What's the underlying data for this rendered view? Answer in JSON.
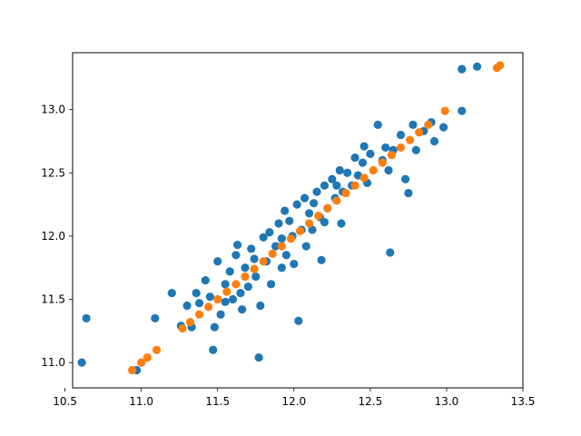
{
  "chart_data": {
    "type": "scatter",
    "title": "",
    "xlabel": "",
    "ylabel": "",
    "xlim": [
      10.55,
      13.5
    ],
    "ylim": [
      10.8,
      13.45
    ],
    "x_ticks": [
      10.5,
      11.0,
      11.5,
      12.0,
      12.5,
      13.0,
      13.5
    ],
    "x_tick_labels": [
      "10.5",
      "11.0",
      "11.5",
      "12.0",
      "12.5",
      "13.0",
      "13.5"
    ],
    "y_ticks": [
      11.0,
      11.5,
      12.0,
      12.5,
      13.0
    ],
    "y_tick_labels": [
      "11.0",
      "11.5",
      "12.0",
      "12.5",
      "13.0"
    ],
    "grid": false,
    "legend": "none",
    "series": [
      {
        "color": "#1f77b4",
        "points": [
          [
            10.61,
            11.0
          ],
          [
            10.64,
            11.35
          ],
          [
            10.97,
            10.94
          ],
          [
            11.09,
            11.35
          ],
          [
            11.2,
            11.55
          ],
          [
            11.26,
            11.29
          ],
          [
            11.3,
            11.45
          ],
          [
            11.33,
            11.28
          ],
          [
            11.36,
            11.55
          ],
          [
            11.38,
            11.47
          ],
          [
            11.42,
            11.65
          ],
          [
            11.45,
            11.52
          ],
          [
            11.47,
            11.1
          ],
          [
            11.48,
            11.28
          ],
          [
            11.5,
            11.8
          ],
          [
            11.52,
            11.38
          ],
          [
            11.55,
            11.62
          ],
          [
            11.58,
            11.72
          ],
          [
            11.6,
            11.5
          ],
          [
            11.62,
            11.85
          ],
          [
            11.63,
            11.93
          ],
          [
            11.65,
            11.55
          ],
          [
            11.68,
            11.75
          ],
          [
            11.7,
            11.6
          ],
          [
            11.72,
            11.9
          ],
          [
            11.75,
            11.68
          ],
          [
            11.77,
            11.04
          ],
          [
            11.78,
            11.45
          ],
          [
            11.8,
            11.99
          ],
          [
            11.82,
            11.8
          ],
          [
            11.84,
            12.03
          ],
          [
            11.85,
            11.62
          ],
          [
            11.88,
            11.92
          ],
          [
            11.9,
            12.1
          ],
          [
            11.92,
            11.75
          ],
          [
            11.94,
            12.2
          ],
          [
            11.95,
            11.85
          ],
          [
            11.97,
            12.12
          ],
          [
            11.99,
            12.0
          ],
          [
            12.0,
            11.78
          ],
          [
            12.02,
            12.25
          ],
          [
            12.03,
            11.33
          ],
          [
            12.05,
            12.05
          ],
          [
            12.07,
            12.3
          ],
          [
            12.08,
            11.92
          ],
          [
            12.1,
            12.18
          ],
          [
            12.12,
            12.05
          ],
          [
            12.15,
            12.35
          ],
          [
            12.17,
            12.15
          ],
          [
            12.18,
            11.81
          ],
          [
            12.2,
            12.4
          ],
          [
            12.22,
            12.22
          ],
          [
            12.25,
            12.45
          ],
          [
            12.27,
            12.3
          ],
          [
            12.3,
            12.52
          ],
          [
            12.32,
            12.35
          ],
          [
            12.35,
            12.5
          ],
          [
            12.38,
            12.4
          ],
          [
            12.4,
            12.62
          ],
          [
            12.42,
            12.48
          ],
          [
            12.45,
            12.58
          ],
          [
            12.48,
            12.42
          ],
          [
            12.5,
            12.65
          ],
          [
            12.55,
            12.88
          ],
          [
            12.58,
            12.6
          ],
          [
            12.6,
            12.7
          ],
          [
            12.63,
            11.87
          ],
          [
            12.65,
            12.68
          ],
          [
            12.7,
            12.8
          ],
          [
            12.73,
            12.45
          ],
          [
            12.75,
            12.34
          ],
          [
            12.78,
            12.88
          ],
          [
            12.8,
            12.68
          ],
          [
            12.85,
            12.83
          ],
          [
            12.9,
            12.9
          ],
          [
            12.92,
            12.75
          ],
          [
            12.98,
            12.86
          ],
          [
            13.1,
            12.99
          ],
          [
            13.1,
            13.32
          ],
          [
            13.2,
            13.34
          ],
          [
            12.31,
            12.1
          ],
          [
            12.28,
            12.4
          ],
          [
            11.92,
            11.98
          ],
          [
            11.74,
            11.82
          ],
          [
            11.55,
            11.48
          ],
          [
            12.46,
            12.71
          ],
          [
            12.62,
            12.52
          ],
          [
            11.66,
            11.42
          ],
          [
            12.13,
            12.26
          ],
          [
            12.2,
            12.11
          ]
        ]
      },
      {
        "color": "#ff7f0e",
        "points": [
          [
            10.94,
            10.94
          ],
          [
            11.0,
            11.0
          ],
          [
            11.04,
            11.04
          ],
          [
            11.1,
            11.1
          ],
          [
            11.27,
            11.27
          ],
          [
            11.32,
            11.32
          ],
          [
            11.38,
            11.38
          ],
          [
            11.44,
            11.44
          ],
          [
            11.5,
            11.5
          ],
          [
            11.56,
            11.56
          ],
          [
            11.62,
            11.62
          ],
          [
            11.68,
            11.68
          ],
          [
            11.74,
            11.74
          ],
          [
            11.8,
            11.8
          ],
          [
            11.86,
            11.86
          ],
          [
            11.92,
            11.92
          ],
          [
            11.98,
            11.98
          ],
          [
            12.04,
            12.04
          ],
          [
            12.1,
            12.1
          ],
          [
            12.16,
            12.16
          ],
          [
            12.22,
            12.22
          ],
          [
            12.28,
            12.28
          ],
          [
            12.34,
            12.34
          ],
          [
            12.4,
            12.4
          ],
          [
            12.46,
            12.46
          ],
          [
            12.52,
            12.52
          ],
          [
            12.58,
            12.58
          ],
          [
            12.64,
            12.64
          ],
          [
            12.7,
            12.7
          ],
          [
            12.76,
            12.76
          ],
          [
            12.82,
            12.82
          ],
          [
            12.88,
            12.88
          ],
          [
            12.99,
            12.99
          ],
          [
            13.33,
            13.33
          ],
          [
            13.35,
            13.35
          ]
        ]
      }
    ]
  }
}
